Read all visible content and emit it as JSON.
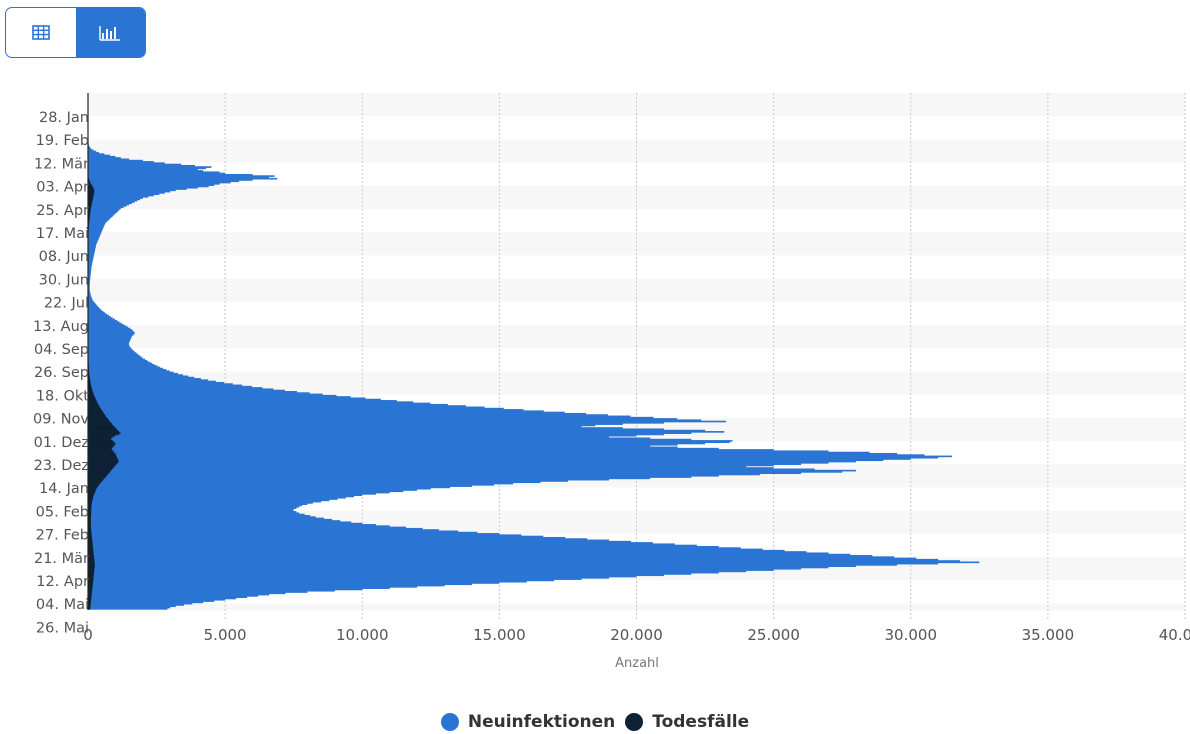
{
  "toolbar": {
    "table_view_icon": "table-icon",
    "chart_view_icon": "bar-chart-icon",
    "active_view": "chart"
  },
  "colors": {
    "neuinfektionen": "#2a74d4",
    "todesfaelle": "#0e2135",
    "accent": "#2a74d4",
    "band": "#f7f7f7",
    "grid": "#c8c8c8"
  },
  "chart_data": {
    "type": "bar",
    "orientation": "horizontal",
    "title": "",
    "xlabel": "Anzahl",
    "ylabel": "",
    "xlim": [
      0,
      40000
    ],
    "x_ticks": [
      "0",
      "5.000",
      "10.000",
      "15.000",
      "20.000",
      "25.000",
      "30.000",
      "35.000",
      "40.000"
    ],
    "y_ticks": [
      "28. Jan",
      "19. Feb",
      "12. Mär",
      "03. Apr",
      "25. Apr",
      "17. Mai",
      "08. Jun",
      "30. Jun",
      "22. Jul",
      "13. Aug",
      "04. Sep",
      "26. Sep",
      "18. Okt",
      "09. Nov",
      "01. Dez",
      "23. Dez",
      "14. Jan",
      "05. Feb",
      "27. Feb",
      "21. Mär",
      "12. Apr",
      "04. Mai",
      "26. Mai"
    ],
    "grid": true,
    "legend_position": "bottom-center",
    "series": [
      {
        "name": "Neuinfektionen",
        "values": [
          0,
          0,
          0,
          0,
          0,
          0,
          0,
          0,
          0,
          0,
          0,
          0,
          0,
          0,
          0,
          0,
          0,
          0,
          0,
          0,
          0,
          0,
          0,
          10,
          20,
          30,
          50,
          80,
          120,
          200,
          300,
          400,
          600,
          800,
          1000,
          1200,
          1500,
          2000,
          2400,
          2800,
          3400,
          3900,
          4500,
          4300,
          4000,
          4200,
          4800,
          5000,
          6000,
          6800,
          6600,
          6900,
          6000,
          5500,
          5200,
          4800,
          4600,
          4400,
          4000,
          3600,
          3200,
          3000,
          2800,
          2600,
          2400,
          2200,
          2000,
          1900,
          1800,
          1700,
          1600,
          1500,
          1400,
          1300,
          1200,
          1150,
          1100,
          1050,
          1000,
          950,
          900,
          850,
          800,
          750,
          700,
          650,
          620,
          600,
          580,
          560,
          540,
          520,
          500,
          480,
          460,
          440,
          420,
          400,
          380,
          360,
          340,
          320,
          300,
          290,
          280,
          270,
          260,
          250,
          240,
          230,
          220,
          210,
          200,
          190,
          180,
          170,
          160,
          150,
          140,
          130,
          125,
          120,
          115,
          110,
          105,
          100,
          95,
          90,
          85,
          80,
          75,
          70,
          68,
          66,
          64,
          62,
          60,
          65,
          70,
          80,
          90,
          100,
          110,
          130,
          150,
          170,
          200,
          240,
          280,
          320,
          360,
          400,
          450,
          500,
          560,
          620,
          690,
          760,
          830,
          900,
          980,
          1060,
          1140,
          1220,
          1300,
          1380,
          1460,
          1540,
          1600,
          1650,
          1700,
          1700,
          1650,
          1600,
          1580,
          1560,
          1540,
          1520,
          1500,
          1490,
          1500,
          1520,
          1560,
          1600,
          1650,
          1700,
          1760,
          1820,
          1880,
          1940,
          2000,
          2080,
          2160,
          2240,
          2330,
          2420,
          2520,
          2620,
          2730,
          2850,
          2980,
          3120,
          3280,
          3460,
          3660,
          3880,
          4120,
          4380,
          4660,
          4960,
          5280,
          5620,
          5980,
          6360,
          6760,
          7180,
          7620,
          8080,
          8560,
          9060,
          9580,
          10120,
          10680,
          11260,
          11860,
          12480,
          13120,
          13780,
          14460,
          15160,
          15880,
          16620,
          17380,
          18160,
          18960,
          19780,
          20620,
          21480,
          22360,
          23260,
          21000,
          19500,
          18500,
          18000,
          19500,
          21000,
          22500,
          23200,
          22000,
          21000,
          20000,
          19000,
          20500,
          22000,
          23500,
          23400,
          22500,
          21500,
          20500,
          21500,
          23000,
          25000,
          27000,
          28500,
          29500,
          30500,
          31500,
          31000,
          30000,
          29000,
          28000,
          27000,
          26000,
          25000,
          24000,
          25000,
          26500,
          28000,
          27500,
          26000,
          24500,
          23000,
          22000,
          20500,
          19000,
          17500,
          16500,
          15500,
          14800,
          14000,
          13200,
          12500,
          12000,
          11500,
          11000,
          10500,
          10000,
          9700,
          9400,
          9100,
          8800,
          8500,
          8200,
          8000,
          7800,
          7700,
          7600,
          7500,
          7500,
          7600,
          7700,
          7900,
          8100,
          8300,
          8600,
          8900,
          9200,
          9600,
          10000,
          10500,
          11000,
          11600,
          12200,
          12800,
          13500,
          14200,
          15000,
          15800,
          16600,
          17400,
          18200,
          19000,
          19800,
          20600,
          21400,
          22200,
          23000,
          23800,
          24600,
          25400,
          26200,
          27000,
          27800,
          28600,
          29400,
          30200,
          31000,
          31800,
          32500,
          31000,
          29500,
          28000,
          27000,
          26000,
          25000,
          24000,
          23000,
          22000,
          21000,
          20000,
          19000,
          18000,
          17000,
          16000,
          15000,
          14000,
          13000,
          12000,
          11000,
          10000,
          9000,
          8000,
          7200,
          6600,
          6200,
          5800,
          5400,
          5000,
          4600,
          4200,
          3800,
          3500,
          3200,
          3000,
          2900
        ]
      },
      {
        "name": "Todesfälle",
        "values": [
          0,
          0,
          0,
          0,
          0,
          0,
          0,
          0,
          0,
          0,
          0,
          0,
          0,
          0,
          0,
          0,
          0,
          0,
          0,
          0,
          0,
          0,
          0,
          0,
          0,
          0,
          0,
          0,
          0,
          0,
          0,
          0,
          0,
          0,
          0,
          0,
          0,
          0,
          0,
          0,
          0,
          0,
          0,
          0,
          1,
          2,
          3,
          5,
          8,
          12,
          20,
          30,
          45,
          60,
          80,
          110,
          140,
          170,
          190,
          210,
          220,
          230,
          225,
          215,
          205,
          195,
          185,
          175,
          165,
          155,
          145,
          135,
          125,
          115,
          105,
          95,
          90,
          85,
          80,
          75,
          70,
          65,
          60,
          55,
          50,
          45,
          40,
          36,
          32,
          28,
          25,
          22,
          20,
          18,
          16,
          14,
          12,
          10,
          9,
          8,
          7,
          6,
          5,
          5,
          4,
          4,
          3,
          3,
          3,
          3,
          2,
          2,
          2,
          2,
          2,
          2,
          2,
          2,
          2,
          2,
          2,
          2,
          2,
          2,
          2,
          2,
          2,
          2,
          2,
          2,
          2,
          2,
          2,
          2,
          2,
          2,
          2,
          2,
          2,
          2,
          2,
          3,
          3,
          3,
          3,
          3,
          3,
          3,
          3,
          3,
          3,
          3,
          3,
          3,
          3,
          3,
          3,
          3,
          4,
          4,
          4,
          4,
          4,
          5,
          5,
          5,
          5,
          5,
          6,
          6,
          6,
          6,
          6,
          7,
          7,
          8,
          8,
          9,
          9,
          10,
          10,
          11,
          11,
          12,
          12,
          13,
          14,
          15,
          16,
          17,
          18,
          19,
          20,
          22,
          24,
          26,
          28,
          30,
          33,
          36,
          40,
          44,
          48,
          53,
          58,
          64,
          70,
          77,
          85,
          93,
          102,
          112,
          123,
          135,
          148,
          162,
          177,
          193,
          210,
          228,
          247,
          267,
          288,
          310,
          333,
          357,
          382,
          408,
          435,
          463,
          492,
          522,
          553,
          585,
          618,
          652,
          687,
          723,
          760,
          798,
          837,
          877,
          918,
          960,
          1003,
          1047,
          1092,
          1138,
          1185,
          1120,
          980,
          900,
          860,
          840,
          900,
          960,
          1000,
          980,
          940,
          900,
          860,
          880,
          920,
          960,
          1000,
          1020,
          1040,
          1060,
          1080,
          1100,
          1120,
          1080,
          1040,
          1000,
          960,
          920,
          880,
          840,
          800,
          760,
          720,
          680,
          640,
          600,
          560,
          520,
          480,
          440,
          400,
          370,
          340,
          310,
          290,
          270,
          250,
          230,
          210,
          195,
          180,
          170,
          160,
          150,
          140,
          135,
          130,
          125,
          120,
          118,
          116,
          114,
          112,
          110,
          108,
          106,
          104,
          102,
          100,
          100,
          102,
          104,
          106,
          108,
          110,
          115,
          120,
          125,
          130,
          135,
          140,
          145,
          150,
          155,
          160,
          165,
          170,
          175,
          180,
          185,
          190,
          195,
          200,
          205,
          210,
          215,
          220,
          225,
          230,
          235,
          240,
          245,
          250,
          245,
          240,
          235,
          230,
          225,
          220,
          215,
          210,
          205,
          200,
          195,
          190,
          185,
          180,
          175,
          170,
          165,
          160,
          155,
          150,
          145,
          140,
          135,
          130,
          125,
          120,
          115,
          110,
          105,
          100,
          95,
          90,
          85,
          80
        ]
      }
    ]
  }
}
